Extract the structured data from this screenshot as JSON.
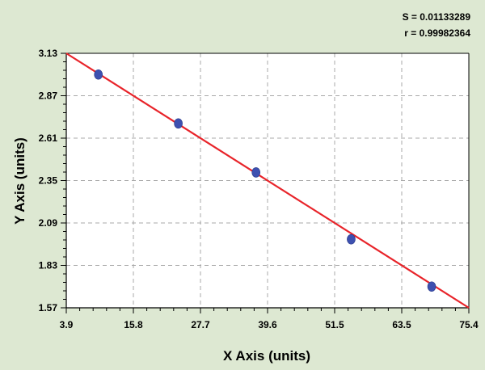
{
  "chart_data": {
    "type": "scatter",
    "title": "",
    "xlabel": "X Axis (units)",
    "ylabel": "Y Axis (units)",
    "xlim": [
      3.9,
      75.4
    ],
    "ylim": [
      1.57,
      3.13
    ],
    "x_ticks": [
      "3.9",
      "15.8",
      "27.7",
      "39.6",
      "51.5",
      "63.5",
      "75.4"
    ],
    "y_ticks": [
      "1.57",
      "1.83",
      "2.09",
      "2.35",
      "2.61",
      "2.87",
      "3.13"
    ],
    "grid": true,
    "annotations": {
      "s_text": "S = 0.01133289",
      "r_text": "r = 0.99982364"
    },
    "points": [
      {
        "x": 9.6,
        "y": 3.0
      },
      {
        "x": 23.8,
        "y": 2.7
      },
      {
        "x": 37.6,
        "y": 2.4
      },
      {
        "x": 54.5,
        "y": 1.99
      },
      {
        "x": 68.8,
        "y": 1.7
      }
    ],
    "fit_line": {
      "x": [
        3.9,
        75.4
      ],
      "y": [
        3.13,
        1.57
      ]
    },
    "colors": {
      "background": "#dde8d2",
      "plot_area": "#ffffff",
      "grid": "#a8a8a8",
      "point": "#3d50b0",
      "fit_line": "#e8242a",
      "axis": "#000000"
    }
  }
}
